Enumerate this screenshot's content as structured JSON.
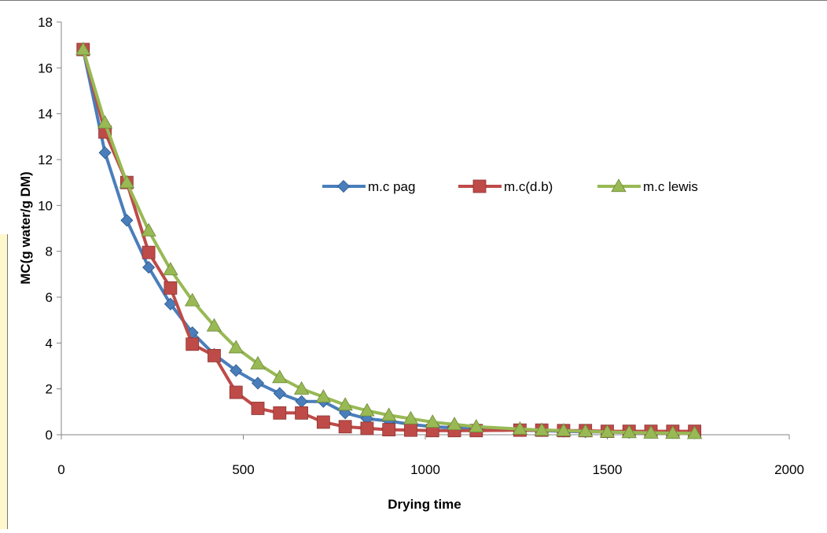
{
  "chart_data": {
    "type": "line",
    "xlabel": "Drying time",
    "ylabel": "MC(g water/g DM)",
    "xlim": [
      0,
      2000
    ],
    "ylim": [
      0,
      18
    ],
    "x_ticks": [
      "0",
      "500",
      "1000",
      "1500",
      "2000"
    ],
    "y_ticks": [
      "0",
      "2",
      "4",
      "6",
      "8",
      "10",
      "12",
      "14",
      "16",
      "18"
    ],
    "grid": false,
    "legend_position": "upper-right-inside",
    "x": [
      60,
      120,
      180,
      240,
      300,
      360,
      420,
      480,
      540,
      600,
      660,
      720,
      780,
      840,
      900,
      960,
      1020,
      1080,
      1140,
      1260,
      1320,
      1380,
      1440,
      1500,
      1560,
      1620,
      1680,
      1740
    ],
    "series": [
      {
        "name": "m.c pag",
        "color": "#4a7ebb",
        "marker": "diamond",
        "values": [
          16.8,
          12.3,
          9.35,
          7.3,
          5.7,
          4.45,
          3.5,
          2.8,
          2.25,
          1.8,
          1.45,
          1.45,
          0.95,
          0.7,
          0.6,
          0.45,
          0.35,
          0.3,
          0.25,
          0.2,
          0.18,
          0.15,
          0.13,
          0.12,
          0.1,
          0.1,
          0.09,
          0.08
        ]
      },
      {
        "name": "m.c(d.b)",
        "color": "#be4b48",
        "marker": "square",
        "values": [
          16.8,
          13.2,
          11.0,
          7.95,
          6.4,
          3.95,
          3.45,
          1.85,
          1.15,
          0.95,
          0.95,
          0.55,
          0.35,
          0.28,
          0.22,
          0.2,
          0.18,
          0.18,
          0.18,
          0.2,
          0.2,
          0.18,
          0.18,
          0.15,
          0.15,
          0.15,
          0.15,
          0.15
        ]
      },
      {
        "name": "m.c lewis",
        "color": "#98b954",
        "marker": "triangle",
        "values": [
          16.8,
          13.6,
          11.0,
          8.9,
          7.2,
          5.85,
          4.75,
          3.8,
          3.1,
          2.5,
          2.0,
          1.65,
          1.3,
          1.05,
          0.85,
          0.7,
          0.55,
          0.45,
          0.35,
          0.25,
          0.2,
          0.18,
          0.15,
          0.12,
          0.1,
          0.08,
          0.07,
          0.06
        ]
      }
    ]
  }
}
